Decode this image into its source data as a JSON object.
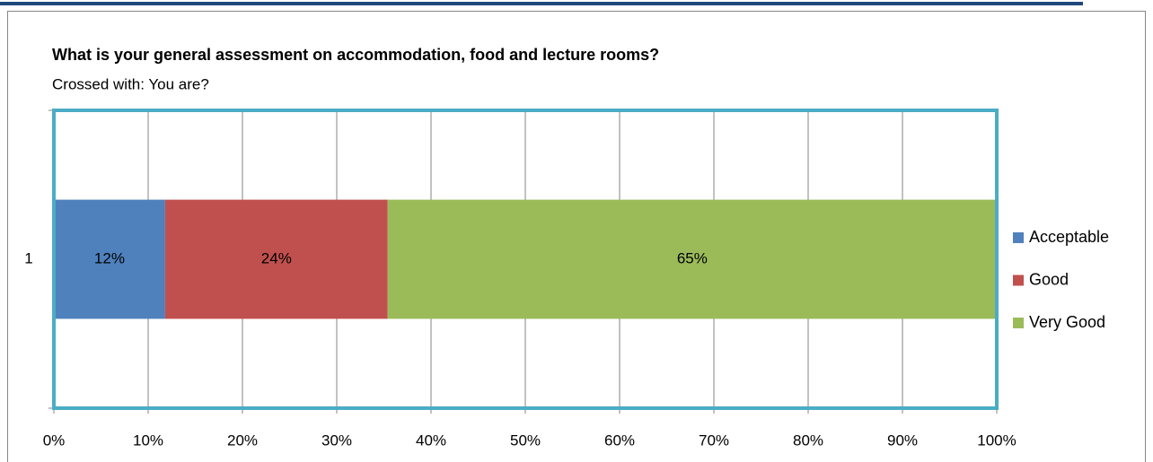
{
  "chart_data": {
    "type": "bar",
    "orientation": "horizontal",
    "stacked": true,
    "title": "What is your general assessment on accommodation, food and lecture rooms?",
    "subtitle": "Crossed with: You are?",
    "categories": [
      "1"
    ],
    "series": [
      {
        "name": "Acceptable",
        "color": "#4f81bd",
        "values": [
          11.8
        ],
        "value_labels": [
          "12%"
        ]
      },
      {
        "name": "Good",
        "color": "#c0504d",
        "values": [
          23.6
        ],
        "value_labels": [
          "24%"
        ]
      },
      {
        "name": "Very Good",
        "color": "#9bbb59",
        "values": [
          64.6
        ],
        "value_labels": [
          "65%"
        ]
      }
    ],
    "xlim": [
      0,
      100
    ],
    "xticks": [
      {
        "value": 0,
        "label": "0%"
      },
      {
        "value": 10,
        "label": "10%"
      },
      {
        "value": 20,
        "label": "20%"
      },
      {
        "value": 30,
        "label": "30%"
      },
      {
        "value": 40,
        "label": "40%"
      },
      {
        "value": 50,
        "label": "50%"
      },
      {
        "value": 60,
        "label": "60%"
      },
      {
        "value": 70,
        "label": "70%"
      },
      {
        "value": 80,
        "label": "80%"
      },
      {
        "value": 90,
        "label": "90%"
      },
      {
        "value": 100,
        "label": "100%"
      }
    ],
    "grid": true,
    "legend": "right"
  }
}
